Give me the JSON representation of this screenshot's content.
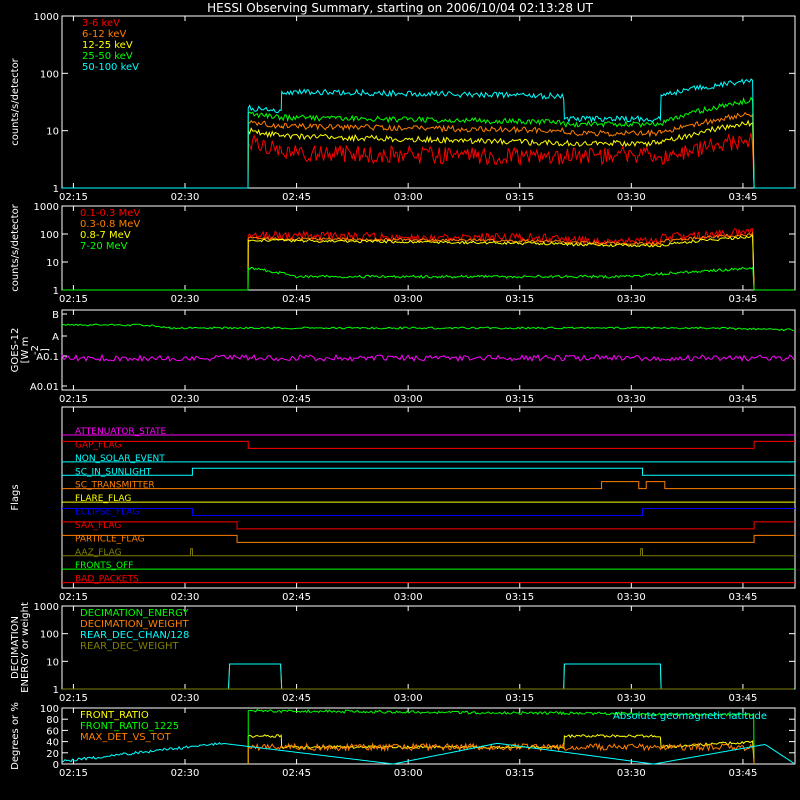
{
  "title": "HESSI Observing Summary, starting on 2006/10/04 02:13:28 UT",
  "time_ticks": [
    "02:15",
    "02:30",
    "02:45",
    "03:00",
    "03:15",
    "03:30",
    "03:45"
  ],
  "colors": {
    "red": "#ff0000",
    "orange": "#ff7f00",
    "yellow": "#ffff00",
    "green": "#00ff00",
    "cyan": "#00ffff",
    "magenta": "#ff00ff",
    "blue": "#0000ff",
    "olive": "#7f7f00",
    "white": "#ffffff"
  },
  "chart_data": [
    {
      "type": "line",
      "ylabel": "counts/s/detector",
      "scale": "log",
      "yticks": [
        "1",
        "10",
        "100",
        "1000"
      ],
      "ylim": [
        1,
        1000
      ],
      "series": [
        {
          "name": "3-6 keV",
          "color": "#ff0000",
          "x": [
            "02:13:28",
            "02:38:30",
            "02:38:30",
            "02:43:00",
            "02:43:00",
            "03:21:00",
            "03:21:00",
            "03:34:00",
            "03:34:00",
            "03:46:30",
            "03:46:30",
            "03:52:00"
          ],
          "y": [
            1,
            1,
            6,
            5,
            4,
            3.5,
            3.5,
            4,
            3.5,
            7,
            1,
            1
          ]
        },
        {
          "name": "6-12 keV",
          "color": "#ff7f00",
          "x": [
            "02:13:28",
            "02:38:30",
            "02:38:30",
            "02:43:00",
            "02:43:00",
            "03:21:00",
            "03:21:00",
            "03:34:00",
            "03:34:00",
            "03:46:30",
            "03:46:30",
            "03:52:00"
          ],
          "y": [
            1,
            1,
            14,
            12,
            12,
            10,
            9,
            9,
            9,
            20,
            1,
            1
          ]
        },
        {
          "name": "12-25 keV",
          "color": "#ffff00",
          "x": [
            "02:13:28",
            "02:38:30",
            "02:38:30",
            "02:43:00",
            "02:43:00",
            "03:21:00",
            "03:21:00",
            "03:34:00",
            "03:34:00",
            "03:46:30",
            "03:46:30",
            "03:52:00"
          ],
          "y": [
            1,
            1,
            10,
            8,
            8,
            6,
            6,
            6,
            6,
            14,
            1,
            1
          ]
        },
        {
          "name": "25-50 keV",
          "color": "#00ff00",
          "x": [
            "02:13:28",
            "02:38:30",
            "02:38:30",
            "02:43:00",
            "02:43:00",
            "03:21:00",
            "03:21:00",
            "03:34:00",
            "03:34:00",
            "03:46:30",
            "03:46:30",
            "03:52:00"
          ],
          "y": [
            1,
            1,
            20,
            17,
            17,
            14,
            13,
            13,
            13,
            35,
            1,
            1
          ]
        },
        {
          "name": "50-100 keV",
          "color": "#00ffff",
          "x": [
            "02:13:28",
            "02:38:30",
            "02:38:30",
            "02:43:00",
            "02:43:00",
            "03:21:00",
            "03:21:00",
            "03:34:00",
            "03:34:00",
            "03:46:30",
            "03:46:30",
            "03:52:00"
          ],
          "y": [
            1,
            1,
            25,
            22,
            48,
            40,
            16,
            16,
            42,
            75,
            1,
            1
          ]
        }
      ]
    },
    {
      "type": "line",
      "ylabel": "counts/s/detector",
      "scale": "log",
      "yticks": [
        "1",
        "10",
        "100",
        "1000"
      ],
      "ylim": [
        1,
        1000
      ],
      "series": [
        {
          "name": "0.1-0.3 MeV",
          "color": "#ff0000",
          "x": [
            "02:13:28",
            "02:38:30",
            "02:38:30",
            "03:21:00",
            "03:21:00",
            "03:34:00",
            "03:34:00",
            "03:46:30",
            "03:46:30",
            "03:52:00"
          ],
          "y": [
            1,
            1,
            90,
            70,
            60,
            55,
            75,
            120,
            1,
            1
          ]
        },
        {
          "name": "0.3-0.8 MeV",
          "color": "#ff7f00",
          "x": [
            "02:13:28",
            "02:38:30",
            "02:38:30",
            "03:21:00",
            "03:21:00",
            "03:34:00",
            "03:34:00",
            "03:46:30",
            "03:46:30",
            "03:52:00"
          ],
          "y": [
            1,
            1,
            70,
            55,
            50,
            45,
            55,
            100,
            1,
            1
          ]
        },
        {
          "name": "0.8-7 MeV",
          "color": "#ffff00",
          "x": [
            "02:13:28",
            "02:38:30",
            "02:38:30",
            "03:21:00",
            "03:21:00",
            "03:34:00",
            "03:34:00",
            "03:46:30",
            "03:46:30",
            "03:52:00"
          ],
          "y": [
            1,
            1,
            60,
            45,
            42,
            38,
            40,
            80,
            1,
            1
          ]
        },
        {
          "name": "7-20 MeV",
          "color": "#00ff00",
          "x": [
            "02:13:28",
            "02:38:30",
            "02:38:30",
            "02:45:00",
            "03:15:00",
            "03:30:00",
            "03:46:30",
            "03:46:30",
            "03:52:00"
          ],
          "y": [
            1,
            1,
            6,
            3,
            3,
            3,
            6,
            1,
            1
          ]
        }
      ]
    },
    {
      "type": "line",
      "ylabel": "GOES-12 [W m-2]",
      "ylabel_lines": [
        "GOES-12",
        "[W m",
        "-2",
        "]"
      ],
      "yticks": [
        "A0.01",
        "A0.1",
        "A",
        "B"
      ],
      "series": [
        {
          "color": "#00ff00",
          "x": [
            "02:13:28",
            "02:25:00",
            "02:28:00",
            "03:40:00",
            "03:52:00"
          ],
          "y": [
            "A+",
            "A+",
            "A",
            "A",
            "A-"
          ]
        },
        {
          "color": "#ff00ff",
          "x": [
            "02:13:28",
            "03:52:00"
          ],
          "y": [
            "A0.1+",
            "A0.1+"
          ]
        }
      ]
    },
    {
      "type": "table",
      "ylabel": "Flags",
      "flags": [
        {
          "name": "ATTENUATOR_STATE",
          "color": "#ff00ff",
          "on": []
        },
        {
          "name": "GAP_FLAG",
          "color": "#ff0000",
          "on": [
            [
              "02:13:28",
              "02:38:30"
            ],
            [
              "03:46:30",
              "03:52:00"
            ]
          ]
        },
        {
          "name": "NON_SOLAR_EVENT",
          "color": "#00ffff",
          "on": []
        },
        {
          "name": "SC_IN_SUNLIGHT",
          "color": "#00ffff",
          "on": [
            [
              "02:31:00",
              "03:31:30"
            ]
          ]
        },
        {
          "name": "SC_TRANSMITTER",
          "color": "#ff7f00",
          "on": [
            [
              "03:26:00",
              "03:31:00"
            ],
            [
              "03:32:00",
              "03:34:30"
            ]
          ]
        },
        {
          "name": "FLARE_FLAG",
          "color": "#ffff00",
          "on": []
        },
        {
          "name": "ECLIPSE_FLAG",
          "color": "#0000ff",
          "on": [
            [
              "02:13:28",
              "02:31:00"
            ],
            [
              "03:31:30",
              "03:52:00"
            ]
          ]
        },
        {
          "name": "SAA_FLAG",
          "color": "#ff0000",
          "on": [
            [
              "02:13:28",
              "02:37:00"
            ],
            [
              "03:46:30",
              "03:52:00"
            ]
          ]
        },
        {
          "name": "PARTICLE_FLAG",
          "color": "#ff7f00",
          "on": [
            [
              "02:13:28",
              "02:37:00"
            ],
            [
              "03:46:30",
              "03:52:00"
            ]
          ]
        },
        {
          "name": "AAZ_FLAG",
          "color": "#7f7f00",
          "on": [
            [
              "02:30:45",
              "02:31:00"
            ],
            [
              "03:31:15",
              "03:31:30"
            ]
          ]
        },
        {
          "name": "FRONTS_OFF",
          "color": "#00ff00",
          "on": []
        },
        {
          "name": "BAD_PACKETS",
          "color": "#ff0000",
          "on": []
        }
      ]
    },
    {
      "type": "line",
      "ylabel": "DECIMATION ENERGY or weight",
      "ylabel_lines": [
        "DECIMATION",
        "ENERGY or weight"
      ],
      "scale": "log",
      "yticks": [
        "1",
        "10",
        "100",
        "1000"
      ],
      "ylim": [
        1,
        1000
      ],
      "series": [
        {
          "name": "DECIMATION_ENERGY",
          "color": "#00ff00",
          "x": [
            "02:13:28",
            "03:52:00"
          ],
          "y": [
            1,
            1
          ]
        },
        {
          "name": "DECIMATION_WEIGHT",
          "color": "#ff7f00",
          "x": [
            "02:13:28",
            "02:36:00",
            "02:36:00",
            "02:43:00",
            "02:43:00",
            "03:21:00",
            "03:21:00",
            "03:34:00",
            "03:34:00",
            "03:52:00"
          ],
          "y": [
            1,
            1,
            8,
            8,
            1,
            1,
            8,
            8,
            1,
            1
          ]
        },
        {
          "name": "REAR_DEC_CHAN/128",
          "color": "#00ffff",
          "x": [
            "02:13:28",
            "02:36:00",
            "02:36:00",
            "02:43:00",
            "02:43:00",
            "03:21:00",
            "03:21:00",
            "03:34:00",
            "03:34:00",
            "03:52:00"
          ],
          "y": [
            1,
            1,
            8,
            8,
            1,
            1,
            8,
            8,
            1,
            1
          ]
        },
        {
          "name": "REAR_DEC_WEIGHT",
          "color": "#7f7f00",
          "x": [
            "02:13:28",
            "03:52:00"
          ],
          "y": [
            1,
            1
          ]
        }
      ]
    },
    {
      "type": "line",
      "ylabel": "Degrees or %",
      "yticks": [
        "0",
        "20",
        "40",
        "60",
        "80",
        "100"
      ],
      "ylim": [
        0,
        100
      ],
      "annotation": "Absolute geomagnetic latitude",
      "series": [
        {
          "name": "FRONT_RATIO",
          "color": "#ffff00",
          "x": [
            "02:38:30",
            "02:38:30",
            "02:43:00",
            "02:43:00",
            "03:21:00",
            "03:21:00",
            "03:34:00",
            "03:34:00",
            "03:46:30",
            "03:46:30"
          ],
          "y": [
            0,
            50,
            50,
            30,
            30,
            50,
            50,
            30,
            40,
            0
          ]
        },
        {
          "name": "FRONT_RATIO_1225",
          "color": "#00ff00",
          "x": [
            "02:38:30",
            "02:38:30",
            "03:46:30",
            "03:46:30"
          ],
          "y": [
            0,
            95,
            88,
            0
          ]
        },
        {
          "name": "MAX_DET_VS_TOT",
          "color": "#ff7f00",
          "x": [
            "02:38:30",
            "02:38:30",
            "03:46:30",
            "03:46:30"
          ],
          "y": [
            0,
            30,
            30,
            0
          ]
        },
        {
          "color": "#00ffff",
          "x": [
            "02:13:28",
            "02:35:00",
            "02:58:00",
            "03:12:00",
            "03:33:00",
            "03:48:00",
            "03:52:00"
          ],
          "y": [
            5,
            37,
            0,
            37,
            0,
            35,
            0
          ]
        }
      ]
    }
  ]
}
